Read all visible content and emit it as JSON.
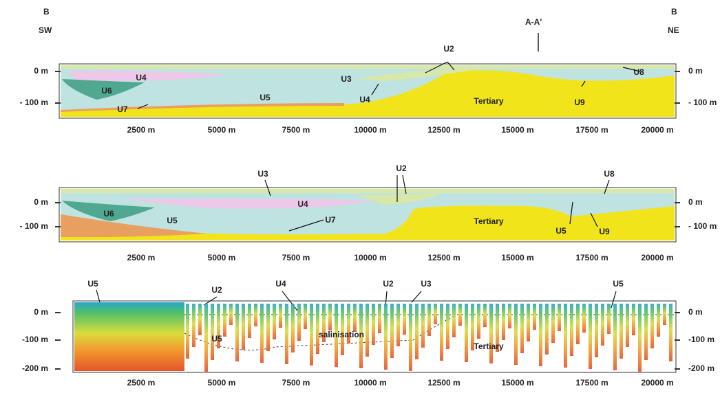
{
  "header": {
    "left_point": "B",
    "left_direction": "SW",
    "section_mark": "A-A'",
    "right_point": "B",
    "right_direction": "NE"
  },
  "panels": [
    {
      "y_labels_left": [
        "0 m",
        "- 100 m"
      ],
      "y_labels_right": [
        "0 m",
        "- 100 m"
      ],
      "x_labels": [
        "2500 m",
        "5000 m",
        "7500 m",
        "10000 m",
        "12500 m",
        "15000 m",
        "17500 m",
        "20000 m"
      ],
      "units": [
        "U4",
        "U6",
        "U7",
        "U3",
        "U5",
        "U4",
        "U2",
        "Tertiary",
        "U9",
        "U8"
      ]
    },
    {
      "y_labels_left": [
        "0 m",
        "- 100 m"
      ],
      "y_labels_right": [
        "0 m",
        "- 100 m"
      ],
      "x_labels": [
        "2500 m",
        "5000 m",
        "7500 m",
        "10000 m",
        "12500 m",
        "15000 m",
        "17500 m",
        "20000 m"
      ],
      "units": [
        "U3",
        "U2",
        "U8",
        "U6",
        "U4",
        "U5",
        "U7",
        "Tertiary",
        "U5",
        "U9"
      ]
    },
    {
      "y_labels_left": [
        "0 m",
        "-100 m",
        "-200 m"
      ],
      "y_labels_right": [
        "0 m",
        "-100 m",
        "-200 m"
      ],
      "x_labels": [
        "2500 m",
        "5000 m",
        "7500 m",
        "10000 m",
        "12500 m",
        "15000 m",
        "17500 m",
        "20000 m"
      ],
      "units": [
        "U5",
        "U2",
        "U4",
        "U2",
        "U3",
        "U5",
        "U5",
        "salinisation",
        "Tertiary"
      ]
    }
  ]
}
